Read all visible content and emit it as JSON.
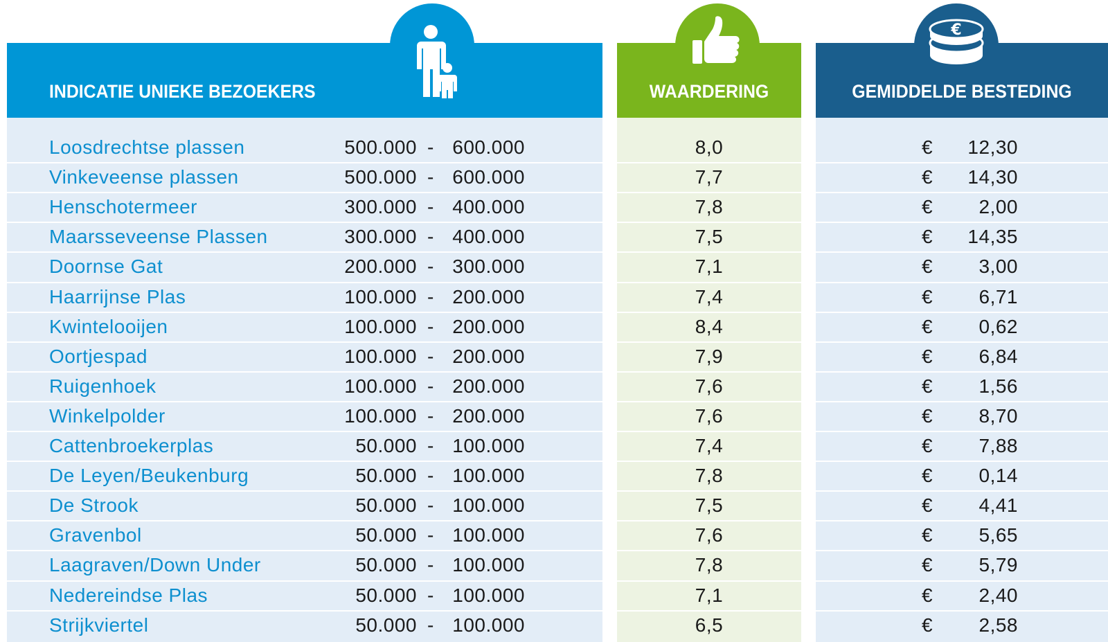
{
  "headers": {
    "visitors": "INDICATIE UNIEKE BEZOEKERS",
    "rating": "WAARDERING",
    "spending": "GEMIDDELDE BESTEDING"
  },
  "range_separator": "-",
  "currency": "€",
  "table": {
    "rows": [
      [
        "Loosdrechtse plassen",
        "500.000",
        "600.000",
        "8,0",
        "12,30"
      ],
      [
        "Vinkeveense plassen",
        "500.000",
        "600.000",
        "7,7",
        "14,30"
      ],
      [
        "Henschotermeer",
        "300.000",
        "400.000",
        "7,8",
        "2,00"
      ],
      [
        "Maarsseveense Plassen",
        "300.000",
        "400.000",
        "7,5",
        "14,35"
      ],
      [
        "Doornse Gat",
        "200.000",
        "300.000",
        "7,1",
        "3,00"
      ],
      [
        "Haarrijnse Plas",
        "100.000",
        "200.000",
        "7,4",
        "6,71"
      ],
      [
        "Kwintelooijen",
        "100.000",
        "200.000",
        "8,4",
        "0,62"
      ],
      [
        "Oortjespad",
        "100.000",
        "200.000",
        "7,9",
        "6,84"
      ],
      [
        "Ruigenhoek",
        "100.000",
        "200.000",
        "7,6",
        "1,56"
      ],
      [
        "Winkelpolder",
        "100.000",
        "200.000",
        "7,6",
        "8,70"
      ],
      [
        "Cattenbroekerplas",
        "50.000",
        "100.000",
        "7,4",
        "7,88"
      ],
      [
        "De Leyen/Beukenburg",
        "50.000",
        "100.000",
        "7,8",
        "0,14"
      ],
      [
        "De Strook",
        "50.000",
        "100.000",
        "7,5",
        "4,41"
      ],
      [
        "Gravenbol",
        "50.000",
        "100.000",
        "7,6",
        "5,65"
      ],
      [
        "Laagraven/Down Under",
        "50.000",
        "100.000",
        "7,8",
        "5,79"
      ],
      [
        "Nedereindse Plas",
        "50.000",
        "100.000",
        "7,1",
        "2,40"
      ],
      [
        "Strijkviertel",
        "50.000",
        "100.000",
        "6,5",
        "2,58"
      ]
    ]
  }
}
